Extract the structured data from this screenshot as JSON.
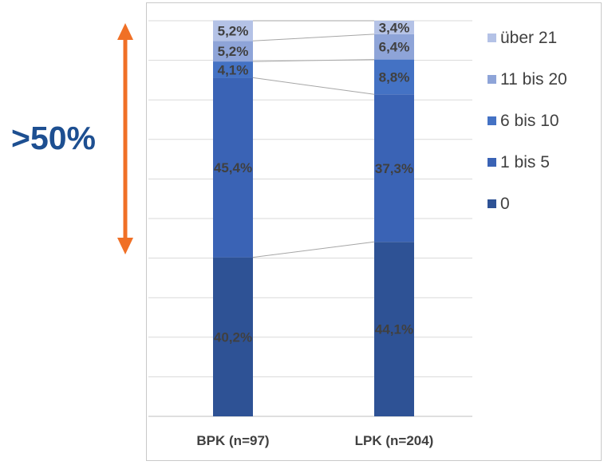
{
  "annotation": {
    "label": ">50%",
    "arrow_color": "#f07026"
  },
  "chart_data": {
    "type": "bar",
    "stacked": true,
    "percent_stacked": true,
    "categories": [
      "BPK (n=97)",
      "LPK (n=204)"
    ],
    "series": [
      {
        "name": "0",
        "values": [
          40.2,
          44.1
        ],
        "labels": [
          "40,2%",
          "44,1%"
        ],
        "color": "#2e5295"
      },
      {
        "name": "1 bis 5",
        "values": [
          45.4,
          37.3
        ],
        "labels": [
          "45,4%",
          "37,3%"
        ],
        "color": "#3a63b5"
      },
      {
        "name": "6 bis 10",
        "values": [
          4.1,
          8.8
        ],
        "labels": [
          "4,1%",
          "8,8%"
        ],
        "color": "#4472c4"
      },
      {
        "name": "11 bis 20",
        "values": [
          5.2,
          6.4
        ],
        "labels": [
          "5,2%",
          "6,4%"
        ],
        "color": "#8ea4d8"
      },
      {
        "name": "über 21",
        "values": [
          5.2,
          3.4
        ],
        "labels": [
          "5,2%",
          "3,4%"
        ],
        "color": "#b4c2e6"
      }
    ],
    "ylim": [
      0,
      100
    ],
    "grid": true,
    "series_lines": true,
    "legend": {
      "position": "right",
      "order": [
        "über 21",
        "11 bis 20",
        "6 bis 10",
        "1 bis 5",
        "0"
      ]
    },
    "title": "",
    "xlabel": "",
    "ylabel": ""
  }
}
